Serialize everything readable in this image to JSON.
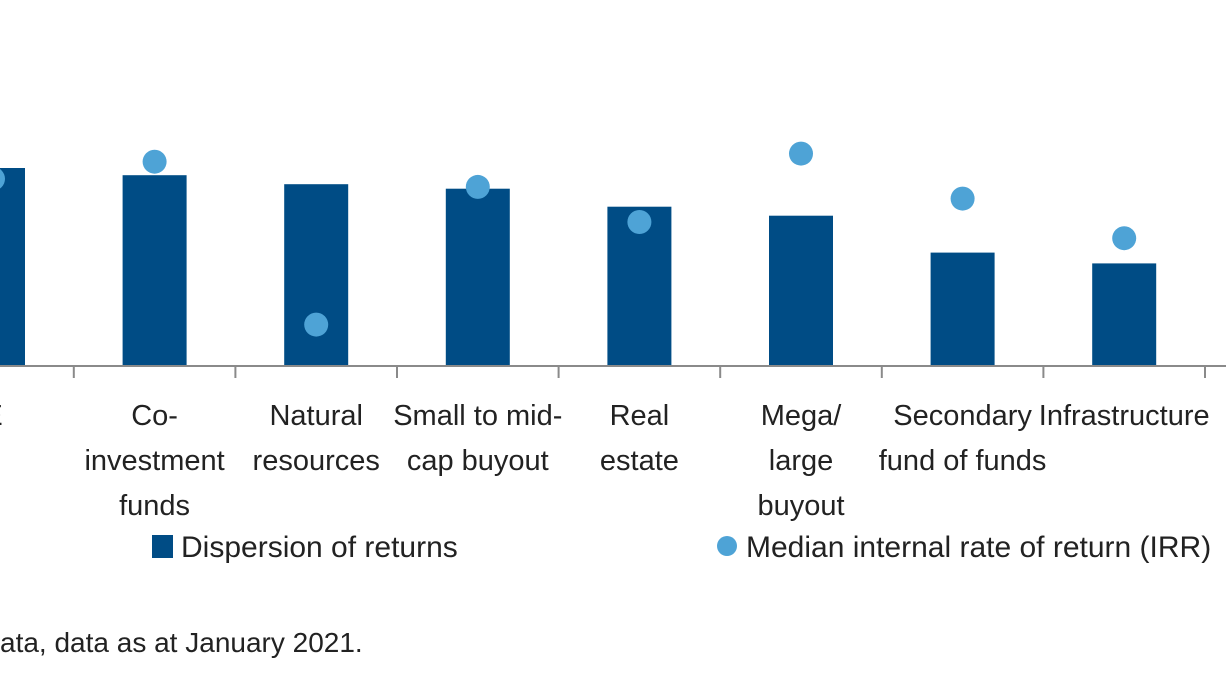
{
  "chart_data": {
    "type": "bar",
    "categories": [
      "E",
      "Co-investment funds",
      "Natural resources",
      "Small to mid-cap buyout",
      "Real estate",
      "Mega/ large buyout",
      "Secondary fund of funds",
      "Infrastructure"
    ],
    "category_lines": [
      [
        "E"
      ],
      [
        "Co-",
        "investment",
        "funds"
      ],
      [
        "Natural",
        "resources"
      ],
      [
        "Small to mid-",
        "cap buyout"
      ],
      [
        "Real",
        "estate"
      ],
      [
        "Mega/",
        "large",
        "buyout"
      ],
      [
        "Secondary",
        "fund of funds"
      ],
      [
        "Infrastructure"
      ]
    ],
    "series": [
      {
        "name": "Dispersion of returns",
        "kind": "bar",
        "color": "#004c85",
        "values": [
          22,
          21.2,
          20.2,
          19.7,
          17.7,
          16.7,
          12.6,
          11.4
        ]
      },
      {
        "name": "Median internal rate of return (IRR)",
        "kind": "dot",
        "color": "#4ea3d6",
        "values": [
          20.8,
          22.7,
          4.6,
          19.9,
          16.0,
          23.6,
          18.6,
          14.2
        ]
      }
    ],
    "ylim": [
      0,
      36
    ],
    "grid": false,
    "legend_position": "bottom"
  },
  "legend": {
    "bar_label": "Dispersion of returns",
    "dot_label": "Median internal rate of return (IRR)"
  },
  "footnote": {
    "text": "ata, data as at January 2021."
  }
}
